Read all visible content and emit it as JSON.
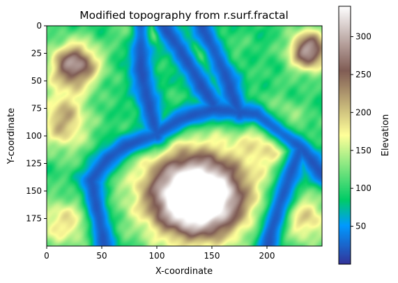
{
  "chart_data": {
    "type": "heatmap",
    "title": "Modified topography from r.surf.fractal",
    "xlabel": "X-coordinate",
    "ylabel": "Y-coordinate",
    "colorbar_label": "Elevation",
    "colormap": "terrain",
    "xlim": [
      0,
      250
    ],
    "ylim": [
      200,
      0
    ],
    "xticks": [
      0,
      50,
      100,
      150,
      200
    ],
    "yticks": [
      0,
      25,
      50,
      75,
      100,
      125,
      150,
      175
    ],
    "colorbar_range": [
      0,
      340
    ],
    "colorbar_ticks": [
      50,
      100,
      150,
      200,
      250,
      300
    ],
    "grid_width": 250,
    "grid_height": 200,
    "features": [
      {
        "kind": "peak",
        "x": 137,
        "y": 158,
        "elevation": 340,
        "sx": 42,
        "sy": 36
      },
      {
        "kind": "ridge",
        "x": 130,
        "y": 140,
        "elevation": 120,
        "sx": 55,
        "sy": 45
      },
      {
        "kind": "peak",
        "x": 25,
        "y": 35,
        "elevation": 240,
        "sx": 22,
        "sy": 20
      },
      {
        "kind": "peak",
        "x": 15,
        "y": 85,
        "elevation": 150,
        "sx": 22,
        "sy": 28
      },
      {
        "kind": "peak",
        "x": 238,
        "y": 22,
        "elevation": 250,
        "sx": 18,
        "sy": 18
      },
      {
        "kind": "peak",
        "x": 85,
        "y": 5,
        "elevation": 140,
        "sx": 16,
        "sy": 12
      },
      {
        "kind": "peak",
        "x": 15,
        "y": 178,
        "elevation": 110,
        "sx": 30,
        "sy": 22
      },
      {
        "kind": "peak",
        "x": 235,
        "y": 175,
        "elevation": 120,
        "sx": 22,
        "sy": 22
      },
      {
        "kind": "peak",
        "x": 205,
        "y": 100,
        "elevation": 120,
        "sx": 28,
        "sy": 28
      },
      {
        "kind": "peak",
        "x": 148,
        "y": 25,
        "elevation": 60,
        "sx": 25,
        "sy": 16
      }
    ],
    "valleys": [
      [
        [
          52,
          200
        ],
        [
          45,
          165
        ],
        [
          40,
          140
        ],
        [
          55,
          120
        ],
        [
          72,
          108
        ],
        [
          95,
          100
        ],
        [
          120,
          85
        ],
        [
          150,
          75
        ],
        [
          190,
          80
        ],
        [
          230,
          110
        ],
        [
          250,
          135
        ]
      ],
      [
        [
          100,
          100
        ],
        [
          92,
          70
        ],
        [
          85,
          40
        ],
        [
          85,
          0
        ]
      ],
      [
        [
          175,
          80
        ],
        [
          160,
          40
        ],
        [
          140,
          0
        ]
      ],
      [
        [
          150,
          70
        ],
        [
          135,
          45
        ],
        [
          120,
          20
        ],
        [
          105,
          0
        ]
      ],
      [
        [
          230,
          110
        ],
        [
          215,
          150
        ],
        [
          205,
          180
        ],
        [
          200,
          200
        ]
      ]
    ]
  }
}
